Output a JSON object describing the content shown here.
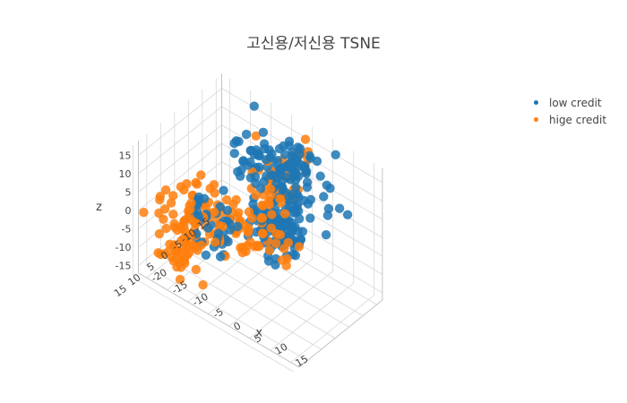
{
  "chart_data": {
    "type": "scatter",
    "title": "고신용/저신용 TSNE",
    "axes": {
      "x": {
        "label": "x",
        "ticks": [
          "-20",
          "-15",
          "-10",
          "-5",
          "0",
          "5",
          "10",
          "15"
        ],
        "range": [
          -22,
          17
        ]
      },
      "y": {
        "label": "",
        "ticks": [
          "-15",
          "-10",
          "-5",
          "0",
          "5",
          "10",
          "15"
        ],
        "range": [
          -17,
          13
        ]
      },
      "z": {
        "label": "z",
        "ticks": [
          "-15",
          "-10",
          "-5",
          "0",
          "5",
          "10",
          "15"
        ],
        "range": [
          -17,
          19
        ]
      }
    },
    "grid": true,
    "legend_position": "top-right",
    "series": [
      {
        "name": "low credit",
        "color": "#1f77b4",
        "clusters": [
          {
            "center": [
              0,
              -6,
              14
            ],
            "spread": [
              5,
              3,
              3
            ],
            "n": 90
          },
          {
            "center": [
              2,
              -6,
              16
            ],
            "spread": [
              2,
              2,
              2
            ],
            "n": 25
          },
          {
            "center": [
              -4,
              -12,
              -8
            ],
            "spread": [
              3,
              3,
              4
            ],
            "n": 110
          },
          {
            "center": [
              -6,
              8,
              3
            ],
            "spread": [
              2,
              2,
              4
            ],
            "n": 30
          },
          {
            "center": [
              -10,
              10,
              8
            ],
            "spread": [
              1,
              1,
              2
            ],
            "n": 10
          }
        ]
      },
      {
        "name": "hige credit",
        "color": "#ff7f0e",
        "clusters": [
          {
            "center": [
              -2,
              -16,
              9
            ],
            "spread": [
              1,
              1,
              2
            ],
            "n": 10
          },
          {
            "center": [
              -4,
              -10,
              6
            ],
            "spread": [
              3,
              3,
              3
            ],
            "n": 40
          },
          {
            "center": [
              -6,
              2,
              0
            ],
            "spread": [
              6,
              4,
              3
            ],
            "n": 80
          },
          {
            "center": [
              -12,
              12,
              2
            ],
            "spread": [
              3,
              3,
              5
            ],
            "n": 70
          },
          {
            "center": [
              -14,
              10,
              -8
            ],
            "spread": [
              1,
              1,
              3
            ],
            "n": 15
          }
        ]
      }
    ]
  }
}
